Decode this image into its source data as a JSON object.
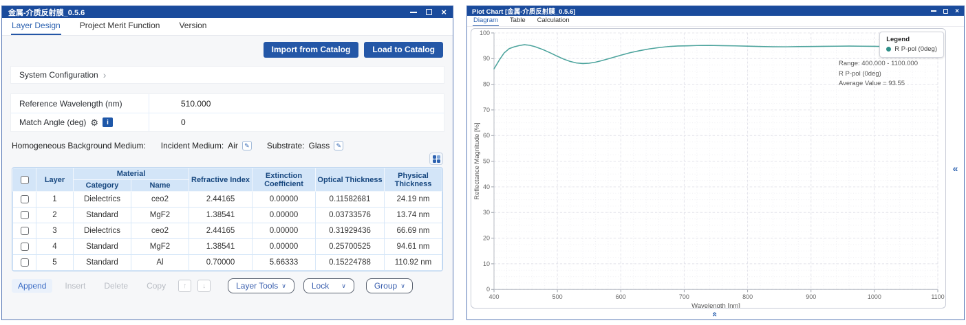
{
  "icons": {
    "close": "×",
    "chevron_right": "›",
    "dropdown_chevron": "∨",
    "gear": "⚙",
    "info": "i",
    "edit": "✎",
    "up_arrow": "↑",
    "down_arrow": "↓",
    "collapse_chevrons": "«"
  },
  "colors": {
    "titlebar": "#1a4b9c",
    "accent_blue": "#2d62b0",
    "button_blue": "#2457a7",
    "table_header_bg": "#d3e5f8",
    "table_header_text": "#17477f",
    "series_teal": "#4da49d",
    "annotation_close_red": "#e05252"
  },
  "left_window": {
    "title": "金属-介质反射膜_0.5.6",
    "tabs": [
      {
        "label": "Layer Design",
        "active": true
      },
      {
        "label": "Project Merit Function",
        "active": false
      },
      {
        "label": "Version",
        "active": false
      }
    ],
    "buttons": {
      "import": "Import from Catalog",
      "load": "Load to Catalog"
    },
    "system_configuration": {
      "label": "System Configuration"
    },
    "params": [
      {
        "label": "Reference Wavelength (nm)",
        "value": "510.000"
      },
      {
        "label": "Match Angle (deg)",
        "value": "0"
      }
    ],
    "background_medium": {
      "label": "Homogeneous Background Medium:",
      "incident_label": "Incident Medium:",
      "incident_value": "Air",
      "substrate_label": "Substrate:",
      "substrate_value": "Glass"
    },
    "table": {
      "columns": {
        "layer": "Layer",
        "material": "Material",
        "category": "Category",
        "name": "Name",
        "refractive_index": "Refractive Index",
        "extinction_coefficient": "Extinction Coefficient",
        "optical_thickness": "Optical Thickness",
        "physical_thickness": "Physical Thickness"
      },
      "rows": [
        [
          "1",
          "Dielectrics",
          "ceo2",
          "2.44165",
          "0.00000",
          "0.11582681",
          "24.19 nm"
        ],
        [
          "2",
          "Standard",
          "MgF2",
          "1.38541",
          "0.00000",
          "0.03733576",
          "13.74 nm"
        ],
        [
          "3",
          "Dielectrics",
          "ceo2",
          "2.44165",
          "0.00000",
          "0.31929436",
          "66.69 nm"
        ],
        [
          "4",
          "Standard",
          "MgF2",
          "1.38541",
          "0.00000",
          "0.25700525",
          "94.61 nm"
        ],
        [
          "5",
          "Standard",
          "Al",
          "0.70000",
          "5.66333",
          "0.15224788",
          "110.92 nm"
        ]
      ]
    },
    "toolbar": {
      "append": "Append",
      "insert": "Insert",
      "delete": "Delete",
      "copy": "Copy",
      "layer_tools": "Layer Tools",
      "lock": "Lock",
      "group": "Group"
    }
  },
  "right_window": {
    "title": "Plot Chart [金属-介质反射膜_0.5.6]",
    "tabs": [
      {
        "label": "Diagram",
        "active": true
      },
      {
        "label": "Table",
        "active": false
      },
      {
        "label": "Calculation",
        "active": false
      }
    ],
    "legend": {
      "title": "Legend",
      "item": "R P-pol (0deg)",
      "color": "#2f8f88"
    },
    "annotation": {
      "line1": "Range: 400.000 - 1100.000",
      "line2": "R P-pol (0deg)",
      "line3": "Average Value = 93.55"
    }
  },
  "chart_data": {
    "type": "line",
    "title": "",
    "xlabel": "Wavelength [nm]",
    "ylabel": "Reflectance Magnitude [%]",
    "xlim": [
      400,
      1100
    ],
    "ylim": [
      0,
      100
    ],
    "xticks": [
      400,
      500,
      600,
      700,
      800,
      900,
      1000,
      1100
    ],
    "yticks": [
      0,
      10,
      20,
      30,
      40,
      50,
      60,
      70,
      80,
      90,
      100
    ],
    "grid": true,
    "minor_grid": {
      "x": 20,
      "y": 2.5
    },
    "legend_position": "top-right",
    "series": [
      {
        "name": "R P-pol (0deg)",
        "color": "#4da49d",
        "points": [
          [
            400,
            86.0
          ],
          [
            408,
            89.3
          ],
          [
            416,
            92.2
          ],
          [
            424,
            93.9
          ],
          [
            432,
            94.6
          ],
          [
            440,
            95.1
          ],
          [
            448,
            95.4
          ],
          [
            456,
            95.2
          ],
          [
            464,
            94.7
          ],
          [
            472,
            94.0
          ],
          [
            480,
            93.2
          ],
          [
            490,
            92.1
          ],
          [
            500,
            90.9
          ],
          [
            510,
            89.8
          ],
          [
            520,
            88.9
          ],
          [
            530,
            88.3
          ],
          [
            540,
            88.1
          ],
          [
            550,
            88.2
          ],
          [
            560,
            88.6
          ],
          [
            570,
            89.2
          ],
          [
            580,
            89.9
          ],
          [
            590,
            90.6
          ],
          [
            600,
            91.3
          ],
          [
            615,
            92.3
          ],
          [
            630,
            93.1
          ],
          [
            645,
            93.8
          ],
          [
            660,
            94.3
          ],
          [
            675,
            94.7
          ],
          [
            690,
            94.9
          ],
          [
            705,
            95.0
          ],
          [
            720,
            95.1
          ],
          [
            740,
            95.15
          ],
          [
            760,
            95.05
          ],
          [
            780,
            94.95
          ],
          [
            800,
            94.85
          ],
          [
            820,
            94.72
          ],
          [
            840,
            94.62
          ],
          [
            860,
            94.6
          ],
          [
            880,
            94.68
          ],
          [
            900,
            94.72
          ],
          [
            920,
            94.78
          ],
          [
            940,
            94.82
          ],
          [
            960,
            94.88
          ],
          [
            980,
            94.82
          ],
          [
            1000,
            94.78
          ],
          [
            1020,
            94.7
          ],
          [
            1040,
            94.6
          ],
          [
            1060,
            94.5
          ],
          [
            1080,
            94.42
          ],
          [
            1100,
            94.4
          ]
        ]
      }
    ]
  }
}
